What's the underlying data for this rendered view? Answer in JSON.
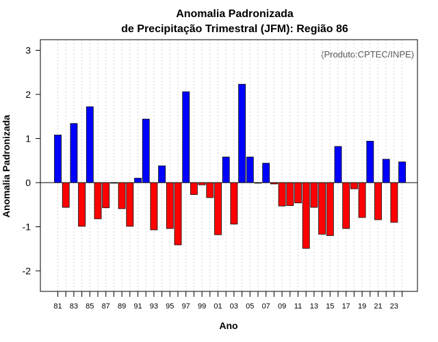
{
  "chart_data": {
    "type": "bar",
    "title_line1": "Anomalia Padronizada",
    "title_line2": "de Precipitação Trimestral (JFM): Região 86",
    "xlabel": "Ano",
    "ylabel": "Anomalia Padronizada",
    "note": "(Produto:CPTEC/INPE)",
    "ylim": [
      -2.5,
      3.25
    ],
    "yticks": [
      -2,
      -1,
      0,
      1,
      2,
      3
    ],
    "categories": [
      "81",
      "82",
      "83",
      "84",
      "85",
      "86",
      "87",
      "88",
      "89",
      "90",
      "91",
      "92",
      "93",
      "94",
      "95",
      "96",
      "97",
      "98",
      "99",
      "00",
      "01",
      "02",
      "03",
      "04",
      "05",
      "06",
      "07",
      "08",
      "09",
      "10",
      "11",
      "12",
      "13",
      "14",
      "15",
      "16",
      "17",
      "18",
      "19",
      "20",
      "21",
      "22",
      "23",
      "24"
    ],
    "values": [
      1.08,
      -0.56,
      1.34,
      -0.99,
      1.72,
      -0.82,
      -0.57,
      0.0,
      -0.59,
      -0.99,
      0.1,
      1.44,
      -1.07,
      0.38,
      -1.04,
      -1.41,
      2.06,
      -0.27,
      -0.05,
      -0.34,
      -1.18,
      0.58,
      -0.94,
      2.23,
      0.58,
      -0.01,
      0.44,
      -0.03,
      -0.53,
      -0.52,
      -0.46,
      -1.49,
      -0.56,
      -1.17,
      -1.2,
      0.82,
      -1.04,
      -0.14,
      -0.79,
      0.94,
      -0.84,
      0.53,
      -0.9,
      0.47
    ],
    "xtick_labels": [
      "81",
      "83",
      "85",
      "87",
      "89",
      "91",
      "93",
      "95",
      "97",
      "99",
      "01",
      "03",
      "05",
      "07",
      "09",
      "11",
      "13",
      "15",
      "17",
      "19",
      "21",
      "23"
    ],
    "colors": {
      "positive": "#0000ff",
      "negative": "#ff0000",
      "zero_line": "#000000",
      "grid": "#d3d3d3"
    }
  }
}
